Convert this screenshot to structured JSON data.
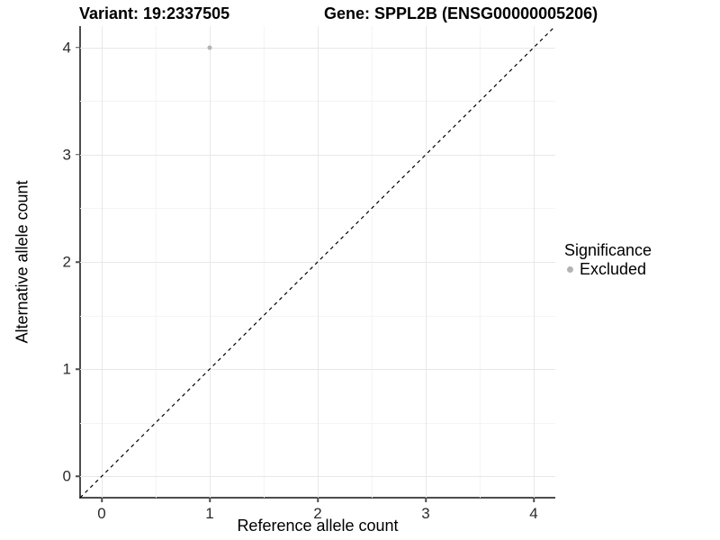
{
  "chart_data": {
    "type": "scatter",
    "titles": {
      "left": "Variant: 19:2337505",
      "right": "Gene: SPPL2B (ENSG00000005206)"
    },
    "xlabel": "Reference allele count",
    "ylabel": "Alternative allele count",
    "xlim": [
      -0.2,
      4.2
    ],
    "ylim": [
      -0.2,
      4.2
    ],
    "x_ticks": [
      0,
      1,
      2,
      3,
      4
    ],
    "y_ticks": [
      0,
      1,
      2,
      3,
      4
    ],
    "x_minor": [
      0.5,
      1.5,
      2.5,
      3.5
    ],
    "y_minor": [
      0.5,
      1.5,
      2.5,
      3.5
    ],
    "grid": "major+minor on white background",
    "points": [
      {
        "x": 1,
        "y": 4,
        "significance": "Excluded",
        "color": "#b3b3b3"
      }
    ],
    "reference_line": {
      "style": "dashed",
      "slope": 1,
      "intercept": 0,
      "color": "#000000"
    },
    "legend": {
      "title": "Significance",
      "position": "right",
      "entries": [
        {
          "label": "Excluded",
          "color": "#b3b3b3"
        }
      ]
    },
    "colors": {
      "background": "#ffffff",
      "grid_major": "#e8e8e8",
      "grid_minor": "#f4f4f4",
      "axis_line": "#4d4d4d",
      "tick_text": "#2b2b2b",
      "title_text": "#000000"
    }
  }
}
